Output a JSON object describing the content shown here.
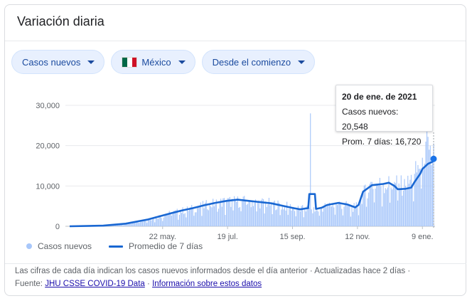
{
  "header": {
    "title": "Variación diaria"
  },
  "filters": {
    "metric": "Casos nuevos",
    "country": "México",
    "range": "Desde el comienzo",
    "flag_colors": [
      "#006847",
      "#ffffff",
      "#ce1126"
    ]
  },
  "tooltip": {
    "date": "20 de ene. de 2021",
    "cases_label": "Casos nuevos: 20,548",
    "avg_label": "Prom. 7 días: 16,720"
  },
  "legend": {
    "bars": "Casos nuevos",
    "line": "Promedio de 7 días"
  },
  "footer": {
    "note": "Las cifras de cada día indican los casos nuevos informados desde el día anterior · Actualizadas hace 2 días  ·",
    "source_prefix": "Fuente:",
    "source_link": "JHU CSSE COVID-19 Data",
    "separator": "·",
    "info_link": "Información sobre estos datos"
  },
  "colors": {
    "bar": "#a8c7fa",
    "line": "#1967d2",
    "accent": "#1a73e8"
  },
  "chart_data": {
    "type": "bar",
    "ylim": [
      0,
      30000
    ],
    "y_ticks": [
      "0",
      "10,000",
      "20,000",
      "30,000"
    ],
    "x_ticks": [
      "22 may.",
      "19 jul.",
      "15 sep.",
      "12 nov.",
      "9 ene."
    ],
    "x_tick_day_index": [
      83,
      141,
      199,
      257,
      315
    ],
    "num_days": 326,
    "series": [
      {
        "name": "Casos nuevos",
        "type": "bar",
        "points": [
          [
            0,
            0
          ],
          [
            30,
            150
          ],
          [
            50,
            700
          ],
          [
            70,
            1800
          ],
          [
            90,
            3300
          ],
          [
            110,
            4500
          ],
          [
            125,
            5600
          ],
          [
            140,
            6300
          ],
          [
            160,
            6300
          ],
          [
            180,
            5800
          ],
          [
            190,
            5200
          ],
          [
            200,
            4800
          ],
          [
            205,
            4300
          ],
          [
            210,
            4400
          ],
          [
            214,
            4600
          ],
          [
            215,
            28000
          ],
          [
            216,
            4200
          ],
          [
            220,
            4000
          ],
          [
            230,
            5300
          ],
          [
            240,
            5800
          ],
          [
            250,
            5000
          ],
          [
            255,
            4700
          ],
          [
            262,
            8000
          ],
          [
            270,
            11000
          ],
          [
            280,
            10500
          ],
          [
            290,
            11000
          ],
          [
            300,
            10000
          ],
          [
            308,
            13000
          ],
          [
            315,
            17000
          ],
          [
            318,
            21000
          ],
          [
            321,
            19000
          ],
          [
            324,
            16000
          ],
          [
            325,
            20548
          ]
        ]
      },
      {
        "name": "Promedio de 7 días",
        "type": "line",
        "points": [
          [
            0,
            0
          ],
          [
            30,
            150
          ],
          [
            50,
            650
          ],
          [
            70,
            1700
          ],
          [
            90,
            3200
          ],
          [
            100,
            3900
          ],
          [
            110,
            4500
          ],
          [
            120,
            5200
          ],
          [
            130,
            5800
          ],
          [
            140,
            6300
          ],
          [
            150,
            6600
          ],
          [
            160,
            6300
          ],
          [
            170,
            6000
          ],
          [
            180,
            5700
          ],
          [
            190,
            5100
          ],
          [
            200,
            4500
          ],
          [
            206,
            4200
          ],
          [
            210,
            4400
          ],
          [
            213,
            4500
          ],
          [
            214,
            8000
          ],
          [
            219,
            8000
          ],
          [
            220,
            4300
          ],
          [
            225,
            4600
          ],
          [
            230,
            5300
          ],
          [
            240,
            5800
          ],
          [
            248,
            5400
          ],
          [
            255,
            4700
          ],
          [
            258,
            5300
          ],
          [
            262,
            8600
          ],
          [
            270,
            10200
          ],
          [
            280,
            10500
          ],
          [
            285,
            10800
          ],
          [
            290,
            10000
          ],
          [
            293,
            9200
          ],
          [
            300,
            9300
          ],
          [
            305,
            9600
          ],
          [
            308,
            11000
          ],
          [
            313,
            13000
          ],
          [
            315,
            14200
          ],
          [
            320,
            15500
          ],
          [
            324,
            16000
          ],
          [
            325,
            16720
          ]
        ]
      }
    ]
  }
}
